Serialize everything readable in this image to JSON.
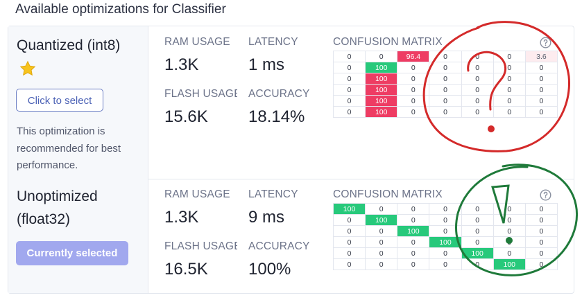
{
  "page_title": "Available optimizations for Classifier",
  "optimizations": [
    {
      "name_line1": "Quantized (int8)",
      "name_line2": "",
      "has_star": true,
      "button_label": "Click to select",
      "note": "This optimization is recommended for best performance.",
      "metrics": {
        "ram_label": "RAM USAGE",
        "ram_value": "1.3K",
        "latency_label": "LATENCY",
        "latency_value": "1 ms",
        "flash_label": "FLASH USAGE",
        "flash_value": "15.6K",
        "accuracy_label": "ACCURACY",
        "accuracy_value": "18.14%"
      },
      "confusion_matrix": {
        "title": "CONFUSION MATRIX",
        "rows": [
          [
            "0",
            "0",
            "96.4",
            "0",
            "0",
            "0",
            "3.6"
          ],
          [
            "0",
            "100",
            "0",
            "0",
            "0",
            "0",
            "0"
          ],
          [
            "0",
            "100",
            "0",
            "0",
            "0",
            "0",
            "0"
          ],
          [
            "0",
            "100",
            "0",
            "0",
            "0",
            "0",
            "0"
          ],
          [
            "0",
            "100",
            "0",
            "0",
            "0",
            "0",
            "0"
          ],
          [
            "0",
            "100",
            "0",
            "0",
            "0",
            "0",
            "0"
          ]
        ]
      }
    },
    {
      "name_line1": "Unoptimized",
      "name_line2": "(float32)",
      "has_star": false,
      "button_label": "Currently selected",
      "note": "",
      "metrics": {
        "ram_label": "RAM USAGE",
        "ram_value": "1.3K",
        "latency_label": "LATENCY",
        "latency_value": "9 ms",
        "flash_label": "FLASH USAGE",
        "flash_value": "16.5K",
        "accuracy_label": "ACCURACY",
        "accuracy_value": "100%"
      },
      "confusion_matrix": {
        "title": "CONFUSION MATRIX",
        "rows": [
          [
            "100",
            "0",
            "0",
            "0",
            "0",
            "0",
            "0"
          ],
          [
            "0",
            "100",
            "0",
            "0",
            "0",
            "0",
            "0"
          ],
          [
            "0",
            "0",
            "100",
            "0",
            "0",
            "0",
            "0"
          ],
          [
            "0",
            "0",
            "0",
            "100",
            "0",
            "0",
            "0"
          ],
          [
            "0",
            "0",
            "0",
            "0",
            "100",
            "0",
            "0"
          ],
          [
            "0",
            "0",
            "0",
            "0",
            "0",
            "100",
            "0"
          ]
        ]
      }
    }
  ],
  "icons": {
    "star": "star-icon",
    "help": "question-circle-icon"
  },
  "colors": {
    "accent": "#4b61b5",
    "selected_button": "#a1a8ee",
    "cell_red": "#ee3c63",
    "cell_green": "#27c97b",
    "annotation_red": "#d42a2a",
    "annotation_green": "#1f7a3a"
  }
}
